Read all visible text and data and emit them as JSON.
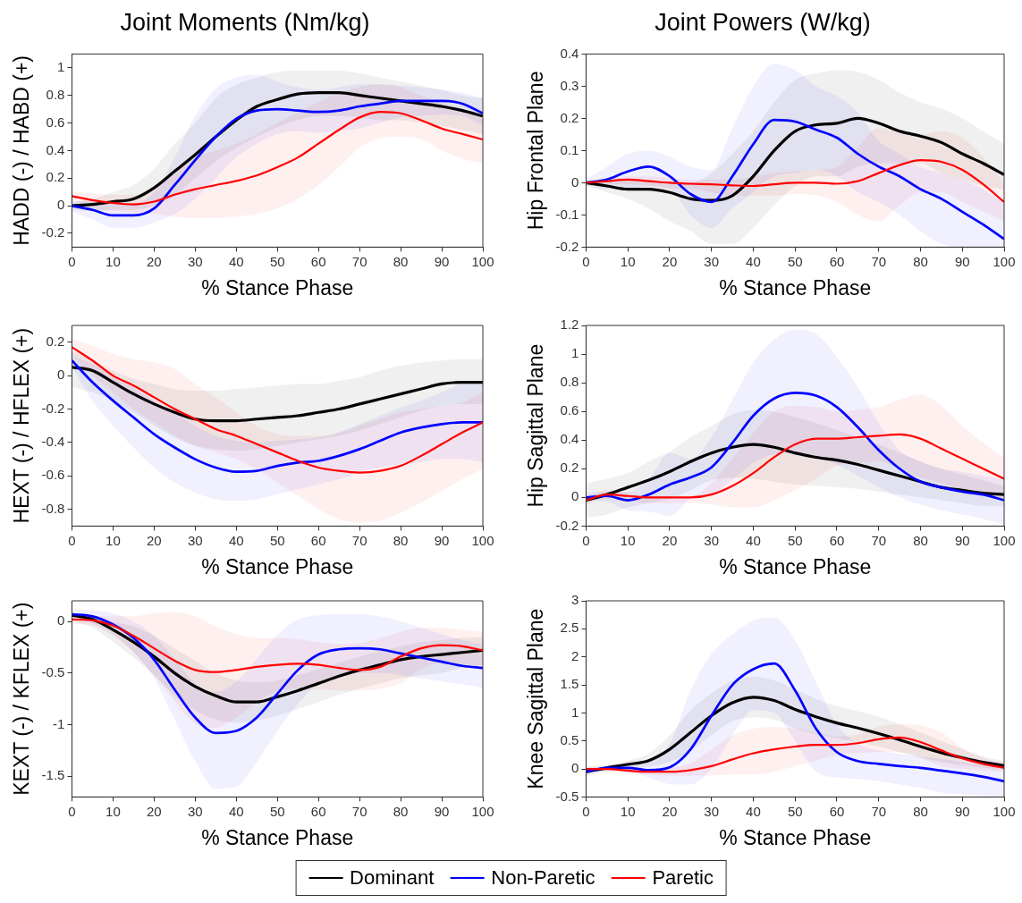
{
  "chart_data": [
    {
      "type": "line",
      "title": "Joint Moments (Nm/kg)",
      "xlabel": "% Stance Phase",
      "ylabel": "HADD (-) / HABD (+)",
      "legend": "bottom",
      "x": [
        0,
        5,
        10,
        15,
        20,
        25,
        30,
        35,
        40,
        45,
        50,
        55,
        60,
        65,
        70,
        75,
        80,
        85,
        90,
        95,
        100
      ],
      "xlim": [
        0,
        100
      ],
      "xticks": [
        0,
        10,
        20,
        30,
        40,
        50,
        60,
        70,
        80,
        90,
        100
      ],
      "ylim": [
        -0.3,
        1.1
      ],
      "yticks": [
        -0.2,
        0,
        0.2,
        0.4,
        0.6,
        0.8,
        1
      ],
      "series": [
        {
          "name": "Dominant",
          "color": "#000000",
          "values": [
            0,
            0.01,
            0.03,
            0.05,
            0.13,
            0.25,
            0.37,
            0.5,
            0.62,
            0.72,
            0.77,
            0.81,
            0.82,
            0.82,
            0.8,
            0.78,
            0.76,
            0.74,
            0.72,
            0.69,
            0.65
          ],
          "lower": [
            -0.03,
            -0.04,
            -0.03,
            -0.03,
            0,
            0.07,
            0.2,
            0.32,
            0.42,
            0.5,
            0.57,
            0.62,
            0.65,
            0.65,
            0.64,
            0.62,
            0.62,
            0.6,
            0.58,
            0.55,
            0.52
          ],
          "upper": [
            0.03,
            0.05,
            0.1,
            0.15,
            0.27,
            0.45,
            0.6,
            0.78,
            0.88,
            0.93,
            0.97,
            0.98,
            0.98,
            0.98,
            0.96,
            0.93,
            0.9,
            0.87,
            0.84,
            0.8,
            0.78
          ]
        },
        {
          "name": "Non-Paretic",
          "color": "#0000ff",
          "values": [
            0,
            -0.03,
            -0.07,
            -0.07,
            -0.02,
            0.15,
            0.33,
            0.5,
            0.63,
            0.69,
            0.7,
            0.69,
            0.68,
            0.69,
            0.72,
            0.74,
            0.76,
            0.76,
            0.76,
            0.74,
            0.67
          ],
          "lower": [
            -0.04,
            -0.1,
            -0.16,
            -0.16,
            -0.12,
            -0.06,
            0.05,
            0.2,
            0.35,
            0.45,
            0.52,
            0.54,
            0.53,
            0.54,
            0.56,
            0.6,
            0.64,
            0.65,
            0.66,
            0.65,
            0.58
          ],
          "upper": [
            0.03,
            0.03,
            0.02,
            0.02,
            0.1,
            0.35,
            0.65,
            0.85,
            0.93,
            0.95,
            0.9,
            0.86,
            0.84,
            0.86,
            0.88,
            0.88,
            0.87,
            0.86,
            0.84,
            0.82,
            0.78
          ]
        },
        {
          "name": "Paretic",
          "color": "#ff0000",
          "values": [
            0.07,
            0.04,
            0.02,
            0.01,
            0.03,
            0.08,
            0.12,
            0.15,
            0.18,
            0.22,
            0.28,
            0.35,
            0.45,
            0.55,
            0.64,
            0.68,
            0.67,
            0.62,
            0.56,
            0.52,
            0.48
          ],
          "lower": [
            0.04,
            -0.02,
            -0.04,
            -0.05,
            -0.06,
            -0.08,
            -0.09,
            -0.09,
            -0.08,
            -0.06,
            -0.02,
            0.05,
            0.15,
            0.28,
            0.42,
            0.49,
            0.5,
            0.48,
            0.4,
            0.34,
            0.31
          ],
          "upper": [
            0.1,
            0.09,
            0.08,
            0.08,
            0.12,
            0.25,
            0.35,
            0.4,
            0.45,
            0.52,
            0.6,
            0.68,
            0.75,
            0.82,
            0.86,
            0.88,
            0.86,
            0.8,
            0.75,
            0.7,
            0.65
          ]
        }
      ]
    },
    {
      "type": "line",
      "title": "Joint Powers (W/kg)",
      "xlabel": "% Stance Phase",
      "ylabel": "Hip Frontal Plane",
      "x": [
        0,
        5,
        10,
        15,
        20,
        25,
        30,
        35,
        40,
        45,
        50,
        55,
        60,
        65,
        70,
        75,
        80,
        85,
        90,
        95,
        100
      ],
      "xlim": [
        0,
        100
      ],
      "xticks": [
        0,
        10,
        20,
        30,
        40,
        50,
        60,
        70,
        80,
        90,
        100
      ],
      "ylim": [
        -0.2,
        0.4
      ],
      "yticks": [
        -0.2,
        -0.1,
        0,
        0.1,
        0.2,
        0.3,
        0.4
      ],
      "series": [
        {
          "color": "#000000",
          "values": [
            0,
            -0.01,
            -0.02,
            -0.02,
            -0.03,
            -0.05,
            -0.055,
            -0.04,
            0.02,
            0.1,
            0.16,
            0.18,
            0.185,
            0.2,
            0.185,
            0.16,
            0.145,
            0.125,
            0.09,
            0.06,
            0.025
          ],
          "lower": [
            -0.01,
            -0.03,
            -0.05,
            -0.08,
            -0.12,
            -0.15,
            -0.19,
            -0.19,
            -0.14,
            -0.07,
            -0.01,
            0.02,
            0.02,
            0.05,
            0.06,
            0.06,
            0.06,
            0.03,
            0.01,
            -0.01,
            -0.02
          ],
          "upper": [
            0,
            0.005,
            0.01,
            0.01,
            0,
            0,
            0.03,
            0.09,
            0.16,
            0.25,
            0.32,
            0.34,
            0.35,
            0.345,
            0.32,
            0.28,
            0.25,
            0.23,
            0.2,
            0.16,
            0.12
          ]
        },
        {
          "color": "#0000ff",
          "values": [
            0,
            0.01,
            0.035,
            0.05,
            0.02,
            -0.035,
            -0.06,
            0.02,
            0.12,
            0.195,
            0.19,
            0.165,
            0.14,
            0.09,
            0.05,
            0.02,
            -0.02,
            -0.05,
            -0.09,
            -0.13,
            -0.175
          ],
          "lower": [
            -0.01,
            -0.02,
            -0.02,
            -0.01,
            -0.02,
            -0.1,
            -0.14,
            -0.08,
            -0.03,
            0.02,
            0.03,
            0.04,
            0.02,
            -0.03,
            -0.06,
            -0.1,
            -0.15,
            -0.19,
            -0.2,
            -0.2,
            -0.2
          ],
          "upper": [
            0.01,
            0.05,
            0.09,
            0.1,
            0.08,
            0.05,
            0.04,
            0.17,
            0.3,
            0.37,
            0.35,
            0.3,
            0.27,
            0.22,
            0.13,
            0.09,
            0.05,
            0.03,
            0.01,
            -0.02,
            -0.06
          ]
        },
        {
          "color": "#ff0000",
          "values": [
            0,
            0.005,
            0.01,
            0.005,
            0,
            -0.003,
            -0.005,
            -0.008,
            -0.01,
            -0.005,
            0,
            0,
            -0.003,
            0.005,
            0.03,
            0.055,
            0.07,
            0.065,
            0.04,
            -0.005,
            -0.06
          ],
          "lower": [
            -0.005,
            -0.005,
            -0.005,
            -0.01,
            -0.02,
            -0.02,
            -0.03,
            -0.04,
            -0.04,
            -0.04,
            -0.035,
            -0.04,
            -0.06,
            -0.1,
            -0.12,
            -0.07,
            -0.03,
            -0.03,
            -0.06,
            -0.09,
            -0.12
          ],
          "upper": [
            0.005,
            0.01,
            0.02,
            0.02,
            0.015,
            0.01,
            0.01,
            0.01,
            0.02,
            0.03,
            0.035,
            0.04,
            0.05,
            0.11,
            0.17,
            0.16,
            0.15,
            0.16,
            0.14,
            0.08,
            0
          ]
        }
      ]
    },
    {
      "type": "line",
      "xlabel": "% Stance Phase",
      "ylabel": "HEXT (-) / HFLEX (+)",
      "x": [
        0,
        5,
        10,
        15,
        20,
        25,
        30,
        35,
        40,
        45,
        50,
        55,
        60,
        65,
        70,
        75,
        80,
        85,
        90,
        95,
        100
      ],
      "xlim": [
        0,
        100
      ],
      "xticks": [
        0,
        10,
        20,
        30,
        40,
        50,
        60,
        70,
        80,
        90,
        100
      ],
      "ylim": [
        -0.9,
        0.3
      ],
      "yticks": [
        -0.8,
        -0.6,
        -0.4,
        -0.2,
        0,
        0.2
      ],
      "series": [
        {
          "color": "#000000",
          "values": [
            0.05,
            0.03,
            -0.04,
            -0.11,
            -0.17,
            -0.22,
            -0.26,
            -0.27,
            -0.27,
            -0.26,
            -0.25,
            -0.24,
            -0.22,
            -0.2,
            -0.17,
            -0.14,
            -0.11,
            -0.08,
            -0.05,
            -0.04,
            -0.04
          ],
          "lower": [
            -0.07,
            -0.1,
            -0.15,
            -0.22,
            -0.3,
            -0.37,
            -0.42,
            -0.44,
            -0.45,
            -0.44,
            -0.42,
            -0.4,
            -0.38,
            -0.36,
            -0.33,
            -0.29,
            -0.25,
            -0.21,
            -0.18,
            -0.17,
            -0.17
          ],
          "upper": [
            0.15,
            0.09,
            0.03,
            -0.02,
            -0.05,
            -0.08,
            -0.09,
            -0.09,
            -0.08,
            -0.07,
            -0.06,
            -0.05,
            -0.05,
            -0.03,
            -0.01,
            0.03,
            0.06,
            0.08,
            0.09,
            0.1,
            0.1
          ]
        },
        {
          "color": "#0000ff",
          "values": [
            0.09,
            -0.04,
            -0.15,
            -0.25,
            -0.35,
            -0.43,
            -0.5,
            -0.55,
            -0.575,
            -0.57,
            -0.54,
            -0.52,
            -0.51,
            -0.48,
            -0.44,
            -0.39,
            -0.34,
            -0.31,
            -0.29,
            -0.28,
            -0.28
          ],
          "lower": [
            0.05,
            -0.15,
            -0.3,
            -0.43,
            -0.55,
            -0.64,
            -0.7,
            -0.74,
            -0.75,
            -0.74,
            -0.71,
            -0.68,
            -0.65,
            -0.62,
            -0.58,
            -0.55,
            -0.53,
            -0.52,
            -0.5,
            -0.5,
            -0.52
          ],
          "upper": [
            0.12,
            0.07,
            0,
            -0.07,
            -0.15,
            -0.22,
            -0.3,
            -0.36,
            -0.39,
            -0.4,
            -0.39,
            -0.38,
            -0.37,
            -0.34,
            -0.29,
            -0.24,
            -0.19,
            -0.15,
            -0.1,
            -0.05,
            -0.04
          ]
        },
        {
          "color": "#ff0000",
          "values": [
            0.17,
            0.09,
            0,
            -0.06,
            -0.13,
            -0.2,
            -0.26,
            -0.32,
            -0.36,
            -0.41,
            -0.46,
            -0.51,
            -0.55,
            -0.57,
            -0.58,
            -0.57,
            -0.54,
            -0.48,
            -0.41,
            -0.34,
            -0.28
          ],
          "lower": [
            0.12,
            0,
            -0.1,
            -0.2,
            -0.28,
            -0.36,
            -0.42,
            -0.46,
            -0.5,
            -0.56,
            -0.64,
            -0.72,
            -0.8,
            -0.86,
            -0.88,
            -0.87,
            -0.82,
            -0.76,
            -0.69,
            -0.62,
            -0.56
          ],
          "upper": [
            0.22,
            0.18,
            0.13,
            0.1,
            0.08,
            0.04,
            -0.05,
            -0.13,
            -0.22,
            -0.3,
            -0.35,
            -0.36,
            -0.36,
            -0.34,
            -0.3,
            -0.26,
            -0.22,
            -0.2,
            -0.18,
            -0.16,
            -0.1
          ]
        }
      ]
    },
    {
      "type": "line",
      "xlabel": "% Stance Phase",
      "ylabel": "Hip Sagittal Plane",
      "x": [
        0,
        5,
        10,
        15,
        20,
        25,
        30,
        35,
        40,
        45,
        50,
        55,
        60,
        65,
        70,
        75,
        80,
        85,
        90,
        95,
        100
      ],
      "xlim": [
        0,
        100
      ],
      "xticks": [
        0,
        10,
        20,
        30,
        40,
        50,
        60,
        70,
        80,
        90,
        100
      ],
      "ylim": [
        -0.2,
        1.2
      ],
      "yticks": [
        -0.2,
        0,
        0.2,
        0.4,
        0.6,
        0.8,
        1,
        1.2
      ],
      "series": [
        {
          "color": "#000000",
          "values": [
            -0.02,
            0.02,
            0.07,
            0.12,
            0.18,
            0.25,
            0.31,
            0.35,
            0.37,
            0.35,
            0.31,
            0.28,
            0.26,
            0.23,
            0.19,
            0.15,
            0.11,
            0.07,
            0.05,
            0.03,
            0.02
          ],
          "lower": [
            -0.14,
            -0.12,
            -0.07,
            -0.04,
            -0.01,
            0.05,
            0.12,
            0.14,
            0.13,
            0.11,
            0.09,
            0.08,
            0.07,
            0.06,
            0.04,
            0.02,
            0,
            -0.02,
            -0.04,
            -0.06,
            -0.06
          ],
          "upper": [
            0.1,
            0.13,
            0.17,
            0.25,
            0.32,
            0.42,
            0.5,
            0.58,
            0.61,
            0.6,
            0.56,
            0.52,
            0.47,
            0.42,
            0.37,
            0.31,
            0.25,
            0.2,
            0.16,
            0.12,
            0.08
          ]
        },
        {
          "color": "#0000ff",
          "values": [
            0,
            0.01,
            -0.02,
            0.02,
            0.09,
            0.14,
            0.21,
            0.38,
            0.57,
            0.69,
            0.73,
            0.71,
            0.63,
            0.49,
            0.33,
            0.2,
            0.11,
            0.07,
            0.04,
            0.02,
            -0.02
          ],
          "lower": [
            -0.02,
            -0.03,
            -0.09,
            -0.1,
            -0.13,
            -0.01,
            0.02,
            0.12,
            0.24,
            0.3,
            0.31,
            0.28,
            0.23,
            0.15,
            0.07,
            0,
            -0.05,
            -0.09,
            -0.12,
            -0.15,
            -0.19
          ],
          "upper": [
            0.03,
            0.04,
            0.04,
            0.13,
            0.31,
            0.27,
            0.42,
            0.68,
            0.94,
            1.1,
            1.17,
            1.14,
            0.98,
            0.77,
            0.52,
            0.33,
            0.25,
            0.2,
            0.18,
            0.15,
            0.13
          ]
        },
        {
          "color": "#ff0000",
          "values": [
            -0.02,
            0.02,
            0.01,
            0,
            0,
            0,
            0.02,
            0.08,
            0.17,
            0.28,
            0.37,
            0.41,
            0.41,
            0.42,
            0.43,
            0.44,
            0.41,
            0.34,
            0.27,
            0.2,
            0.13
          ],
          "lower": [
            -0.05,
            -0.01,
            -0.02,
            -0.04,
            -0.04,
            -0.04,
            -0.05,
            -0.07,
            -0.07,
            -0.02,
            0.05,
            0.13,
            0.22,
            0.24,
            0.25,
            0.2,
            0.14,
            0.1,
            0.05,
            0.02,
            0
          ],
          "upper": [
            0,
            0.05,
            0.03,
            0.01,
            0.01,
            0.01,
            0.1,
            0.27,
            0.45,
            0.6,
            0.64,
            0.63,
            0.6,
            0.61,
            0.63,
            0.68,
            0.72,
            0.64,
            0.5,
            0.38,
            0.28
          ]
        }
      ]
    },
    {
      "type": "line",
      "xlabel": "% Stance Phase",
      "ylabel": "KEXT (-) / KFLEX (+)",
      "x": [
        0,
        5,
        10,
        15,
        20,
        25,
        30,
        35,
        40,
        45,
        50,
        55,
        60,
        65,
        70,
        75,
        80,
        85,
        90,
        95,
        100
      ],
      "xlim": [
        0,
        100
      ],
      "xticks": [
        0,
        10,
        20,
        30,
        40,
        50,
        60,
        70,
        80,
        90,
        100
      ],
      "ylim": [
        -1.7,
        0.2
      ],
      "yticks": [
        -1.5,
        -1,
        -0.5,
        0
      ],
      "series": [
        {
          "color": "#000000",
          "values": [
            0.06,
            0.02,
            -0.08,
            -0.2,
            -0.34,
            -0.5,
            -0.63,
            -0.72,
            -0.78,
            -0.78,
            -0.73,
            -0.67,
            -0.6,
            -0.53,
            -0.47,
            -0.42,
            -0.37,
            -0.34,
            -0.32,
            -0.3,
            -0.28
          ],
          "lower": [
            0,
            -0.06,
            -0.2,
            -0.35,
            -0.52,
            -0.72,
            -0.86,
            -0.95,
            -0.98,
            -0.96,
            -0.91,
            -0.85,
            -0.78,
            -0.71,
            -0.65,
            -0.6,
            -0.55,
            -0.52,
            -0.5,
            -0.45,
            -0.42
          ],
          "upper": [
            0.08,
            0.06,
            0,
            -0.05,
            -0.14,
            -0.26,
            -0.38,
            -0.5,
            -0.57,
            -0.59,
            -0.57,
            -0.52,
            -0.46,
            -0.4,
            -0.34,
            -0.29,
            -0.24,
            -0.2,
            -0.18,
            -0.16,
            -0.15
          ]
        },
        {
          "color": "#0000ff",
          "values": [
            0.07,
            0.05,
            -0.03,
            -0.16,
            -0.37,
            -0.66,
            -0.93,
            -1.08,
            -1.06,
            -0.93,
            -0.7,
            -0.47,
            -0.32,
            -0.27,
            -0.26,
            -0.27,
            -0.31,
            -0.35,
            -0.39,
            -0.43,
            -0.45
          ],
          "lower": [
            0.04,
            -0.02,
            -0.12,
            -0.3,
            -0.55,
            -0.95,
            -1.35,
            -1.62,
            -1.6,
            -1.36,
            -1.06,
            -0.8,
            -0.6,
            -0.53,
            -0.5,
            -0.5,
            -0.52,
            -0.55,
            -0.58,
            -0.61,
            -0.64
          ],
          "upper": [
            0.12,
            0.11,
            0.08,
            0,
            -0.14,
            -0.36,
            -0.6,
            -0.68,
            -0.58,
            -0.36,
            -0.13,
            0.02,
            0.06,
            0.07,
            0.07,
            0.05,
            0,
            -0.06,
            -0.12,
            -0.18,
            -0.22
          ]
        },
        {
          "color": "#ff0000",
          "values": [
            0.02,
            0.01,
            -0.04,
            -0.14,
            -0.26,
            -0.38,
            -0.47,
            -0.49,
            -0.47,
            -0.44,
            -0.42,
            -0.41,
            -0.42,
            -0.45,
            -0.47,
            -0.44,
            -0.34,
            -0.26,
            -0.23,
            -0.24,
            -0.28
          ],
          "lower": [
            -0.02,
            -0.04,
            -0.14,
            -0.3,
            -0.52,
            -0.77,
            -0.99,
            -1.03,
            -0.93,
            -0.78,
            -0.68,
            -0.65,
            -0.66,
            -0.67,
            -0.67,
            -0.65,
            -0.6,
            -0.46,
            -0.4,
            -0.42,
            -0.46
          ],
          "upper": [
            0.05,
            0.05,
            0.05,
            0.05,
            0.08,
            0.09,
            0.05,
            -0.05,
            -0.12,
            -0.16,
            -0.16,
            -0.17,
            -0.2,
            -0.22,
            -0.21,
            -0.16,
            -0.1,
            -0.06,
            -0.06,
            -0.08,
            -0.1
          ]
        }
      ]
    },
    {
      "type": "line",
      "xlabel": "% Stance Phase",
      "ylabel": "Knee Sagittal Plane",
      "x": [
        0,
        5,
        10,
        15,
        20,
        25,
        30,
        35,
        40,
        45,
        50,
        55,
        60,
        65,
        70,
        75,
        80,
        85,
        90,
        95,
        100
      ],
      "xlim": [
        0,
        100
      ],
      "xticks": [
        0,
        10,
        20,
        30,
        40,
        50,
        60,
        70,
        80,
        90,
        100
      ],
      "ylim": [
        -0.5,
        3
      ],
      "yticks": [
        -0.5,
        0,
        0.5,
        1,
        1.5,
        2,
        2.5,
        3
      ],
      "series": [
        {
          "color": "#000000",
          "values": [
            -0.05,
            0.02,
            0.08,
            0.15,
            0.35,
            0.65,
            0.95,
            1.18,
            1.28,
            1.22,
            1.06,
            0.93,
            0.82,
            0.73,
            0.63,
            0.52,
            0.4,
            0.29,
            0.2,
            0.12,
            0.06
          ],
          "lower": [
            -0.13,
            -0.04,
            0,
            0.04,
            0.12,
            0.32,
            0.6,
            0.85,
            0.92,
            0.88,
            0.72,
            0.62,
            0.55,
            0.47,
            0.4,
            0.3,
            0.2,
            0.12,
            0.07,
            0.02,
            -0.02
          ],
          "upper": [
            0.05,
            0.07,
            0.15,
            0.28,
            0.6,
            1.05,
            1.35,
            1.58,
            1.65,
            1.58,
            1.42,
            1.25,
            1.12,
            1.03,
            0.93,
            0.8,
            0.65,
            0.5,
            0.35,
            0.22,
            0.14
          ]
        },
        {
          "color": "#0000ff",
          "values": [
            -0.05,
            0.02,
            0.02,
            -0.02,
            0.03,
            0.35,
            0.95,
            1.5,
            1.78,
            1.88,
            1.4,
            0.72,
            0.3,
            0.14,
            0.09,
            0.05,
            0.02,
            -0.03,
            -0.08,
            -0.14,
            -0.22
          ],
          "lower": [
            -0.08,
            -0.02,
            -0.05,
            -0.15,
            -0.27,
            -0.28,
            0,
            0.6,
            1.05,
            1,
            0.5,
            -0.05,
            -0.15,
            -0.18,
            -0.22,
            -0.28,
            -0.34,
            -0.42,
            -0.45,
            -0.47,
            -0.48
          ],
          "upper": [
            0.02,
            0.05,
            0.06,
            0.12,
            0.45,
            1.4,
            2.05,
            2.4,
            2.65,
            2.7,
            2.3,
            1.55,
            0.8,
            0.45,
            0.33,
            0.27,
            0.22,
            0.18,
            0.13,
            0.08,
            0.05
          ]
        },
        {
          "color": "#ff0000",
          "values": [
            0,
            0,
            -0.03,
            -0.05,
            -0.05,
            -0.02,
            0.05,
            0.17,
            0.28,
            0.35,
            0.4,
            0.43,
            0.43,
            0.46,
            0.53,
            0.56,
            0.48,
            0.33,
            0.19,
            0.09,
            0.02
          ],
          "lower": [
            -0.03,
            -0.05,
            -0.08,
            -0.1,
            -0.12,
            -0.12,
            -0.12,
            -0.1,
            -0.1,
            -0.05,
            0.05,
            0.15,
            0.25,
            0.28,
            0.3,
            0.3,
            0.2,
            0.05,
            0,
            -0.03,
            -0.05
          ],
          "upper": [
            0.02,
            0.02,
            0,
            0,
            0.02,
            0.1,
            0.35,
            0.6,
            0.72,
            0.75,
            0.72,
            0.65,
            0.58,
            0.62,
            0.75,
            0.8,
            0.78,
            0.65,
            0.38,
            0.2,
            0.12
          ]
        }
      ]
    }
  ]
}
